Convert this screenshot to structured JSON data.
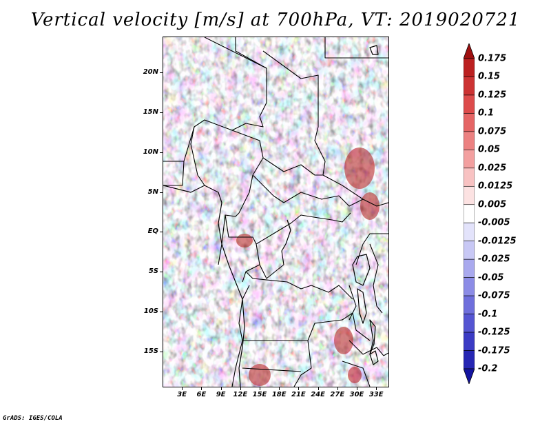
{
  "title": "Vertical velocity [m/s] at 700hPa, VT: 2019020721",
  "map": {
    "field": "vertical velocity",
    "level": "700hPa",
    "lat_range": [
      -19.5,
      24.5
    ],
    "lon_range": [
      0,
      35
    ],
    "lat_ticks": [
      {
        "value": 20,
        "label": "20N"
      },
      {
        "value": 15,
        "label": "15N"
      },
      {
        "value": 10,
        "label": "10N"
      },
      {
        "value": 5,
        "label": "5N"
      },
      {
        "value": 0,
        "label": "EQ"
      },
      {
        "value": -5,
        "label": "5S"
      },
      {
        "value": -10,
        "label": "10S"
      },
      {
        "value": -15,
        "label": "15S"
      }
    ],
    "lon_ticks": [
      {
        "value": 3,
        "label": "3E"
      },
      {
        "value": 6,
        "label": "6E"
      },
      {
        "value": 9,
        "label": "9E"
      },
      {
        "value": 12,
        "label": "12E"
      },
      {
        "value": 15,
        "label": "15E"
      },
      {
        "value": 18,
        "label": "18E"
      },
      {
        "value": 21,
        "label": "21E"
      },
      {
        "value": 24,
        "label": "24E"
      },
      {
        "value": 27,
        "label": "27E"
      },
      {
        "value": 30,
        "label": "30E"
      },
      {
        "value": 33,
        "label": "33E"
      }
    ]
  },
  "colorbar": {
    "labels": [
      "0.175",
      "0.15",
      "0.125",
      "0.1",
      "0.075",
      "0.05",
      "0.025",
      "0.0125",
      "0.005",
      "-0.005",
      "-0.0125",
      "-0.025",
      "-0.05",
      "-0.075",
      "-0.1",
      "-0.125",
      "-0.175",
      "-0.2"
    ],
    "colors": [
      "#a01010",
      "#bb2020",
      "#cc3333",
      "#dd4b4b",
      "#e56565",
      "#ec8181",
      "#f3a0a0",
      "#f8c2c2",
      "#fce2e2",
      "#ffffff",
      "#e3e3fb",
      "#c8c8f5",
      "#a9a9ee",
      "#8c8ce6",
      "#6f6fdc",
      "#5555d2",
      "#3b3bc4",
      "#2626b3",
      "#1414a0"
    ]
  },
  "credit": "GrADS: IGES/COLA"
}
